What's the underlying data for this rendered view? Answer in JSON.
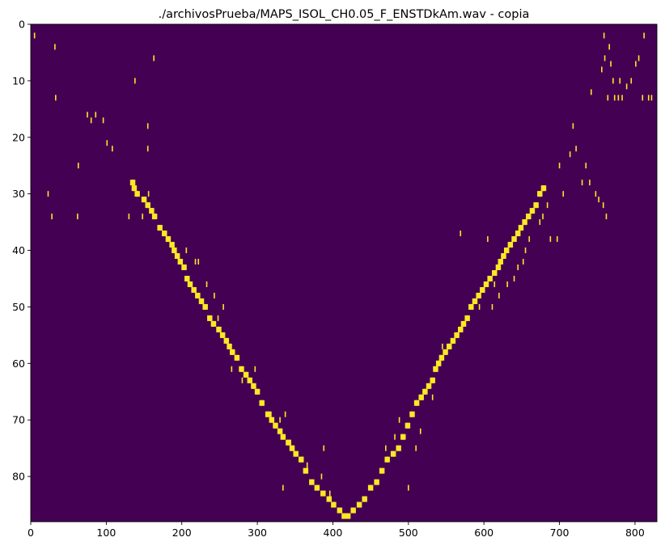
{
  "chart_data": {
    "type": "heatmap",
    "title": "./archivosPrueba/MAPS_ISOL_CH0.05_F_ENSTDkAm.wav - copia",
    "xlabel": "",
    "ylabel": "",
    "xlim": [
      0,
      829
    ],
    "ylim": [
      88,
      0
    ],
    "x_ticks": [
      0,
      100,
      200,
      300,
      400,
      500,
      600,
      700,
      800
    ],
    "y_ticks": [
      0,
      10,
      20,
      30,
      40,
      50,
      60,
      70,
      80
    ],
    "grid": false,
    "colormap": "viridis",
    "background_color": "#440154",
    "active_color": "#fde725",
    "value_range": [
      0,
      1
    ],
    "descending_path": [
      [
        134,
        28
      ],
      [
        136,
        29
      ],
      [
        140,
        30
      ],
      [
        149,
        31
      ],
      [
        154,
        32
      ],
      [
        159,
        33
      ],
      [
        163,
        34
      ],
      [
        170,
        36
      ],
      [
        176,
        37
      ],
      [
        181,
        38
      ],
      [
        186,
        39
      ],
      [
        189,
        40
      ],
      [
        193,
        41
      ],
      [
        197,
        42
      ],
      [
        202,
        43
      ],
      [
        206,
        45
      ],
      [
        210,
        46
      ],
      [
        215,
        47
      ],
      [
        220,
        48
      ],
      [
        225,
        49
      ],
      [
        230,
        50
      ],
      [
        236,
        52
      ],
      [
        241,
        53
      ],
      [
        248,
        54
      ],
      [
        253,
        55
      ],
      [
        258,
        56
      ],
      [
        262,
        57
      ],
      [
        266,
        58
      ],
      [
        272,
        59
      ],
      [
        278,
        61
      ],
      [
        284,
        62
      ],
      [
        289,
        63
      ],
      [
        294,
        64
      ],
      [
        299,
        65
      ],
      [
        305,
        67
      ],
      [
        313,
        69
      ],
      [
        318,
        70
      ],
      [
        323,
        71
      ],
      [
        329,
        72
      ],
      [
        333,
        73
      ],
      [
        340,
        74
      ],
      [
        345,
        75
      ],
      [
        350,
        76
      ],
      [
        357,
        77
      ],
      [
        363,
        79
      ],
      [
        371,
        81
      ],
      [
        378,
        82
      ],
      [
        386,
        83
      ],
      [
        394,
        84
      ],
      [
        400,
        85
      ],
      [
        408,
        86
      ],
      [
        414,
        87
      ]
    ],
    "ascending_path": [
      [
        421,
        87
      ],
      [
        428,
        86
      ],
      [
        436,
        85
      ],
      [
        443,
        84
      ],
      [
        451,
        82
      ],
      [
        459,
        81
      ],
      [
        466,
        79
      ],
      [
        473,
        77
      ],
      [
        481,
        76
      ],
      [
        488,
        75
      ],
      [
        494,
        73
      ],
      [
        500,
        71
      ],
      [
        506,
        69
      ],
      [
        512,
        67
      ],
      [
        518,
        66
      ],
      [
        523,
        65
      ],
      [
        528,
        64
      ],
      [
        533,
        63
      ],
      [
        537,
        61
      ],
      [
        541,
        60
      ],
      [
        545,
        59
      ],
      [
        550,
        58
      ],
      [
        555,
        57
      ],
      [
        560,
        56
      ],
      [
        565,
        55
      ],
      [
        570,
        54
      ],
      [
        574,
        53
      ],
      [
        579,
        52
      ],
      [
        584,
        50
      ],
      [
        589,
        49
      ],
      [
        594,
        48
      ],
      [
        599,
        47
      ],
      [
        604,
        46
      ],
      [
        609,
        45
      ],
      [
        615,
        44
      ],
      [
        620,
        43
      ],
      [
        623,
        42
      ],
      [
        627,
        41
      ],
      [
        631,
        40
      ],
      [
        636,
        39
      ],
      [
        641,
        38
      ],
      [
        646,
        37
      ],
      [
        650,
        36
      ],
      [
        655,
        35
      ],
      [
        660,
        34
      ],
      [
        665,
        33
      ],
      [
        670,
        32
      ],
      [
        675,
        30
      ],
      [
        680,
        29
      ]
    ],
    "scattered_points": [
      [
        5,
        2
      ],
      [
        32,
        4
      ],
      [
        33,
        13
      ],
      [
        23,
        30
      ],
      [
        28,
        34
      ],
      [
        63,
        25
      ],
      [
        62,
        34
      ],
      [
        75,
        16
      ],
      [
        80,
        17
      ],
      [
        86,
        16
      ],
      [
        96,
        17
      ],
      [
        101,
        21
      ],
      [
        108,
        22
      ],
      [
        130,
        34
      ],
      [
        138,
        10
      ],
      [
        155,
        18
      ],
      [
        155,
        22
      ],
      [
        163,
        6
      ],
      [
        148,
        34
      ],
      [
        156,
        30
      ],
      [
        206,
        40
      ],
      [
        218,
        42
      ],
      [
        222,
        42
      ],
      [
        233,
        46
      ],
      [
        243,
        48
      ],
      [
        255,
        50
      ],
      [
        248,
        52
      ],
      [
        266,
        61
      ],
      [
        280,
        63
      ],
      [
        297,
        61
      ],
      [
        318,
        69
      ],
      [
        330,
        70
      ],
      [
        337,
        69
      ],
      [
        344,
        74
      ],
      [
        360,
        77
      ],
      [
        366,
        78
      ],
      [
        385,
        80
      ],
      [
        396,
        83
      ],
      [
        334,
        82
      ],
      [
        388,
        75
      ],
      [
        500,
        82
      ],
      [
        510,
        75
      ],
      [
        516,
        72
      ],
      [
        470,
        75
      ],
      [
        482,
        73
      ],
      [
        488,
        70
      ],
      [
        532,
        66
      ],
      [
        545,
        57
      ],
      [
        569,
        37
      ],
      [
        605,
        38
      ],
      [
        594,
        50
      ],
      [
        611,
        50
      ],
      [
        620,
        48
      ],
      [
        614,
        46
      ],
      [
        631,
        46
      ],
      [
        640,
        45
      ],
      [
        645,
        43
      ],
      [
        652,
        42
      ],
      [
        655,
        40
      ],
      [
        660,
        38
      ],
      [
        674,
        35
      ],
      [
        678,
        34
      ],
      [
        684,
        32
      ],
      [
        688,
        38
      ],
      [
        697,
        38
      ],
      [
        705,
        30
      ],
      [
        700,
        25
      ],
      [
        714,
        23
      ],
      [
        722,
        22
      ],
      [
        735,
        25
      ],
      [
        740,
        28
      ],
      [
        730,
        28
      ],
      [
        748,
        30
      ],
      [
        752,
        31
      ],
      [
        758,
        32
      ],
      [
        762,
        34
      ],
      [
        718,
        18
      ],
      [
        759,
        2
      ],
      [
        766,
        4
      ],
      [
        768,
        7
      ],
      [
        771,
        10
      ],
      [
        773,
        13
      ],
      [
        778,
        13
      ],
      [
        783,
        13
      ],
      [
        789,
        11
      ],
      [
        805,
        6
      ],
      [
        812,
        2
      ],
      [
        818,
        13
      ],
      [
        822,
        13
      ],
      [
        760,
        6
      ],
      [
        764,
        13
      ],
      [
        780,
        10
      ],
      [
        795,
        10
      ],
      [
        801,
        7
      ],
      [
        810,
        13
      ],
      [
        756,
        8
      ],
      [
        742,
        12
      ]
    ]
  }
}
